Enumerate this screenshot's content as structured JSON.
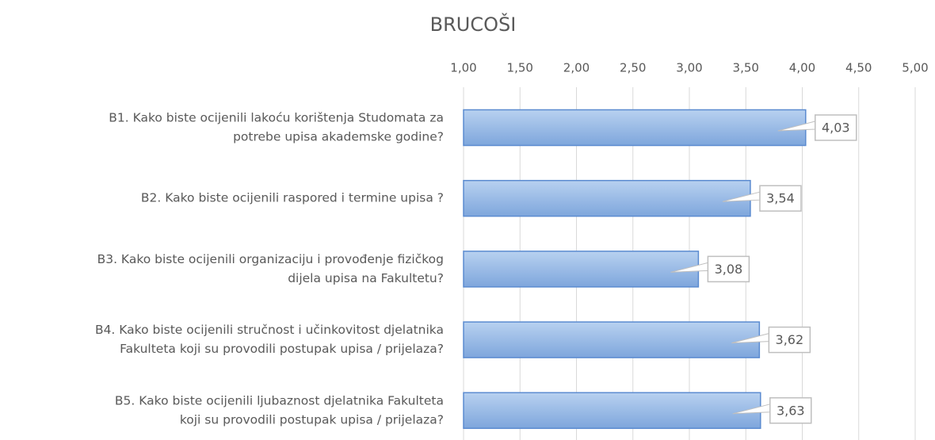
{
  "chart_data": {
    "type": "hbar",
    "title": "BRUCOŠI",
    "categories": [
      [
        "B1. Kako biste ocijenili lakoću korištenja Studomata za",
        "potrebe upisa akademske godine?"
      ],
      [
        "B2. Kako biste ocijenili raspored i termine upisa ?"
      ],
      [
        "B3. Kako biste ocijenili organizaciju i provođenje fizičkog",
        "dijela upisa na Fakultetu?"
      ],
      [
        "B4. Kako biste ocijenili stručnost i učinkovitost djelatnika",
        "Fakulteta koji su provodili postupak upisa / prijelaza?"
      ],
      [
        "B5. Kako biste ocijenili ljubaznost djelatnika Fakulteta",
        "koji su provodili postupak upisa / prijelaza?"
      ]
    ],
    "values": [
      4.03,
      3.54,
      3.08,
      3.62,
      3.63
    ],
    "value_labels": [
      "4,03",
      "3,54",
      "3,08",
      "3,62",
      "3,63"
    ],
    "color": "#8fb4e3",
    "xlim": [
      1,
      5
    ],
    "xticks": [
      {
        "value": 1,
        "label": "1,00"
      },
      {
        "value": 1.5,
        "label": "1,50"
      },
      {
        "value": 2,
        "label": "2,00"
      },
      {
        "value": 2.5,
        "label": "2,50"
      },
      {
        "value": 3,
        "label": "3,00"
      },
      {
        "value": 3.5,
        "label": "3,50"
      },
      {
        "value": 4,
        "label": "4,00"
      },
      {
        "value": 4.5,
        "label": "4,50"
      },
      {
        "value": 5,
        "label": "5,00"
      }
    ],
    "grid": true
  }
}
